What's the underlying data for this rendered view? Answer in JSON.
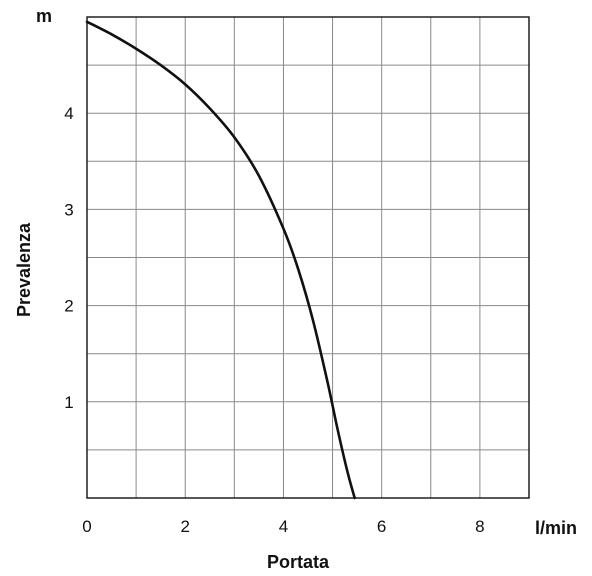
{
  "chart_data": {
    "type": "line",
    "title": "",
    "xlabel": "Portata",
    "ylabel": "Prevalenza",
    "x_unit": "l/min",
    "y_unit": "m",
    "xlim": [
      0,
      9
    ],
    "ylim": [
      0,
      5
    ],
    "x_ticks": [
      "0",
      "2",
      "4",
      "6",
      "8"
    ],
    "y_ticks": [
      "1",
      "2",
      "3",
      "4"
    ],
    "grid": true,
    "line_color": "#111111",
    "series": [
      {
        "x": [
          0,
          0.5,
          1.0,
          1.5,
          2.0,
          2.5,
          3.0,
          3.5,
          4.0,
          4.3,
          4.6,
          4.9,
          5.1,
          5.3,
          5.45
        ],
        "y": [
          4.95,
          4.82,
          4.67,
          4.5,
          4.3,
          4.05,
          3.75,
          3.35,
          2.8,
          2.38,
          1.85,
          1.2,
          0.72,
          0.28,
          0.0
        ]
      }
    ]
  }
}
